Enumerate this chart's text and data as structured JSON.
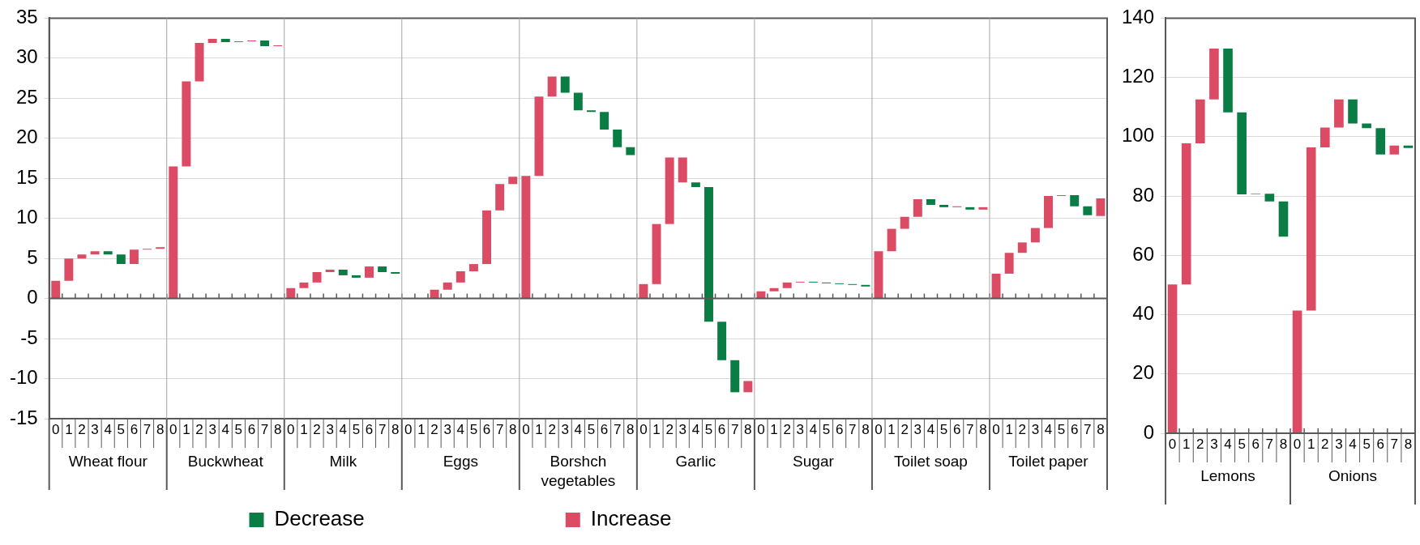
{
  "chart_data": [
    {
      "type": "bar",
      "categories": [
        "0",
        "1",
        "2",
        "3",
        "4",
        "5",
        "6",
        "7",
        "8",
        "0",
        "1",
        "2",
        "3",
        "4",
        "5",
        "6",
        "7",
        "8",
        "0",
        "1",
        "2",
        "3",
        "4",
        "5",
        "6",
        "7",
        "8",
        "0",
        "1",
        "2",
        "3",
        "4",
        "5",
        "6",
        "7",
        "8",
        "0",
        "1",
        "2",
        "3",
        "4",
        "5",
        "6",
        "7",
        "8",
        "0",
        "1",
        "2",
        "3",
        "4",
        "5",
        "6",
        "7",
        "8",
        "0",
        "1",
        "2",
        "3",
        "4",
        "5",
        "6",
        "7",
        "8",
        "0",
        "1",
        "2",
        "3",
        "4",
        "5",
        "6",
        "7",
        "8",
        "0",
        "1",
        "2",
        "3",
        "4",
        "5",
        "6",
        "7",
        "8"
      ],
      "annotations": [
        "Wheat flour",
        "Buckwheat",
        "Milk",
        "Eggs",
        "Borshch vegetables",
        "Garlic",
        "Sugar",
        "Toilet soap",
        "Toilet paper"
      ],
      "series": [
        {
          "name": "Decrease",
          "color": "#0a7d44",
          "base": [
            null,
            null,
            null,
            null,
            5.9,
            5.5,
            null,
            null,
            null,
            null,
            null,
            null,
            null,
            32.4,
            null,
            null,
            32.2,
            null,
            null,
            null,
            null,
            null,
            3.6,
            2.9,
            null,
            4.0,
            3.3,
            null,
            null,
            null,
            null,
            null,
            null,
            null,
            null,
            null,
            null,
            null,
            null,
            27.7,
            25.7,
            23.5,
            23.3,
            21.1,
            18.9,
            null,
            null,
            null,
            null,
            14.5,
            13.9,
            -2.9,
            -7.7,
            null,
            null,
            null,
            null,
            null,
            2.1,
            2.0,
            1.9,
            1.8,
            1.7,
            null,
            null,
            null,
            null,
            12.4,
            11.7,
            null,
            11.4,
            null,
            null,
            null,
            null,
            null,
            null,
            null,
            12.9,
            11.5,
            null
          ],
          "values": [
            null,
            null,
            null,
            null,
            -0.4,
            -1.2,
            null,
            null,
            null,
            null,
            null,
            null,
            null,
            -0.4,
            null,
            null,
            -0.7,
            null,
            null,
            null,
            null,
            null,
            -0.7,
            -0.3,
            null,
            -0.7,
            -0.2,
            null,
            null,
            null,
            null,
            null,
            null,
            null,
            null,
            null,
            null,
            null,
            null,
            -2.0,
            -2.2,
            -0.2,
            -2.2,
            -2.2,
            -1.0,
            null,
            null,
            null,
            null,
            -0.6,
            -16.8,
            -4.8,
            -4.0,
            null,
            null,
            null,
            null,
            null,
            -0.1,
            -0.1,
            -0.1,
            -0.1,
            -0.2,
            null,
            null,
            null,
            null,
            -0.7,
            -0.3,
            null,
            -0.3,
            null,
            null,
            null,
            null,
            null,
            null,
            null,
            -1.4,
            -1.1,
            null
          ]
        },
        {
          "name": "Increase",
          "color": "#dc4b64",
          "base": [
            0,
            2.2,
            5.0,
            5.5,
            null,
            null,
            4.3,
            6.1,
            6.2,
            0,
            16.5,
            27.1,
            31.9,
            null,
            32.0,
            32.1,
            null,
            31.5,
            0,
            1.3,
            2.0,
            3.3,
            null,
            null,
            2.6,
            null,
            null,
            null,
            null,
            0,
            1.1,
            2.0,
            3.4,
            4.3,
            11.0,
            14.3,
            0,
            15.3,
            25.2,
            null,
            null,
            null,
            null,
            null,
            null,
            0,
            1.8,
            9.3,
            14.5,
            null,
            null,
            null,
            null,
            -11.7,
            0,
            0.9,
            1.3,
            2.0,
            null,
            null,
            null,
            null,
            null,
            0,
            5.9,
            8.7,
            10.2,
            null,
            null,
            11.4,
            null,
            11.1,
            0,
            3.1,
            5.7,
            7.0,
            8.8,
            12.8,
            null,
            null,
            10.3
          ],
          "values": [
            2.2,
            2.8,
            0.5,
            0.4,
            null,
            null,
            1.8,
            0.1,
            0.2,
            16.5,
            10.6,
            4.8,
            0.5,
            null,
            0.1,
            0.1,
            null,
            0.1,
            1.3,
            0.7,
            1.3,
            0.3,
            null,
            null,
            1.4,
            null,
            null,
            null,
            null,
            1.1,
            0.9,
            1.4,
            0.9,
            6.7,
            3.3,
            0.9,
            15.3,
            9.9,
            2.5,
            null,
            null,
            null,
            null,
            null,
            null,
            1.8,
            7.5,
            8.3,
            3.1,
            null,
            null,
            null,
            null,
            1.4,
            0.9,
            0.4,
            0.7,
            0.1,
            null,
            null,
            null,
            null,
            null,
            5.9,
            2.8,
            1.5,
            2.2,
            null,
            null,
            0.1,
            null,
            0.3,
            3.1,
            2.6,
            1.3,
            1.8,
            4.0,
            0.1,
            null,
            null,
            2.2
          ]
        }
      ],
      "ylim": [
        -15,
        35
      ],
      "yticks": [
        -15,
        -10,
        -5,
        0,
        5,
        10,
        15,
        20,
        25,
        30,
        35
      ],
      "grid": "y",
      "legend": "bottom"
    },
    {
      "type": "bar",
      "categories": [
        "0",
        "1",
        "2",
        "3",
        "4",
        "5",
        "6",
        "7",
        "8",
        "0",
        "1",
        "2",
        "3",
        "4",
        "5",
        "6",
        "7",
        "8"
      ],
      "annotations": [
        "Lemons",
        "Onions"
      ],
      "series": [
        {
          "color": "#0a7d44",
          "base": [
            null,
            null,
            null,
            null,
            129.7,
            108.2,
            null,
            80.8,
            78.2,
            null,
            null,
            null,
            null,
            112.6,
            104.5,
            102.9,
            null,
            97.0
          ],
          "values": [
            null,
            null,
            null,
            null,
            -21.5,
            -27.6,
            null,
            -2.6,
            -11.9,
            null,
            null,
            null,
            null,
            -8.1,
            -1.6,
            -8.9,
            null,
            -0.8
          ]
        },
        {
          "color": "#dc4b64",
          "base": [
            0,
            50.2,
            97.8,
            112.6,
            null,
            null,
            80.6,
            null,
            null,
            0,
            41.4,
            96.4,
            103.1,
            null,
            null,
            null,
            94.0,
            null
          ],
          "values": [
            50.2,
            47.6,
            14.8,
            17.1,
            null,
            null,
            0.2,
            null,
            null,
            41.4,
            55.0,
            6.7,
            9.5,
            null,
            null,
            null,
            3.0,
            null
          ]
        }
      ],
      "ylim": [
        0,
        140
      ],
      "yticks": [
        0,
        20,
        40,
        60,
        80,
        100,
        120,
        140
      ],
      "grid": "y"
    }
  ]
}
